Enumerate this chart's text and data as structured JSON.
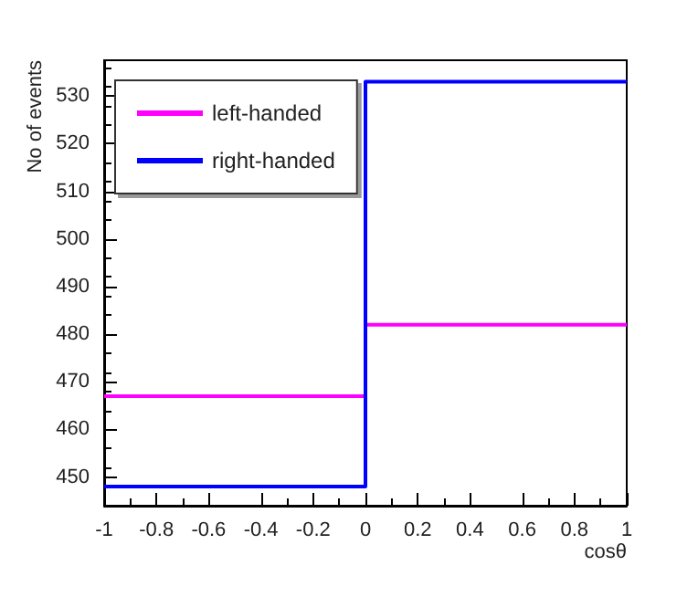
{
  "chart_data": {
    "type": "histogram",
    "xlabel": "cosθ",
    "ylabel": "No of events",
    "bins": [
      -1,
      0,
      1
    ],
    "series": [
      {
        "name": "left-handed",
        "color": "#ff00ff",
        "values": [
          467,
          482
        ]
      },
      {
        "name": "right-handed",
        "color": "#0000ff",
        "values": [
          448,
          533
        ]
      }
    ],
    "xlim": [
      -1,
      1
    ],
    "xticks": [
      -1,
      -0.8,
      -0.6,
      -0.4,
      -0.2,
      0,
      0.2,
      0.4,
      0.6,
      0.8,
      1
    ],
    "ylim": [
      444,
      537.5
    ],
    "yticks": [
      450,
      460,
      470,
      480,
      490,
      500,
      510,
      520,
      530
    ],
    "grid": false,
    "legend": "top left"
  }
}
